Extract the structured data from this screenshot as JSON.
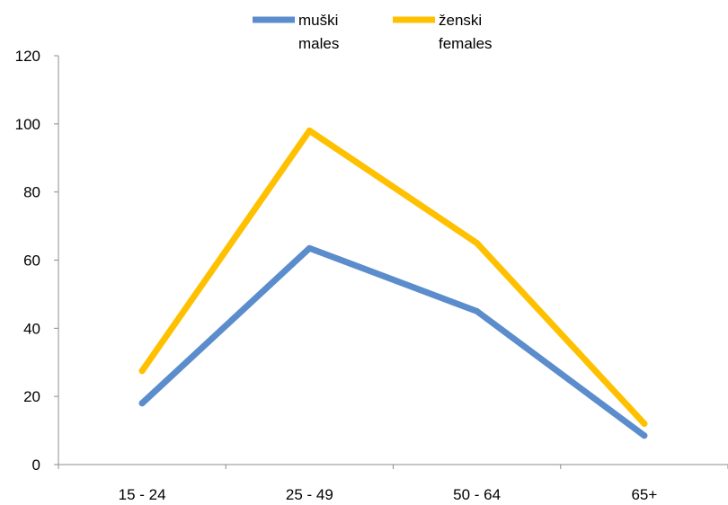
{
  "chart_data": {
    "type": "line",
    "categories": [
      "15 - 24",
      "25 - 49",
      "50 - 64",
      "65+"
    ],
    "series": [
      {
        "name": "muški\nmales",
        "name_lines": [
          "muški",
          "males"
        ],
        "color": "#5b8ccc",
        "values": [
          18,
          63.5,
          45,
          8.5
        ]
      },
      {
        "name": "ženski\nfemales",
        "name_lines": [
          "ženski",
          "females"
        ],
        "color": "#ffc000",
        "values": [
          27.5,
          98,
          65,
          12
        ]
      }
    ],
    "ylim": [
      0,
      120
    ],
    "yticks": [
      0,
      20,
      40,
      60,
      80,
      100,
      120
    ],
    "grid": false,
    "legend": "top-center",
    "title": "",
    "xlabel": "",
    "ylabel": ""
  }
}
